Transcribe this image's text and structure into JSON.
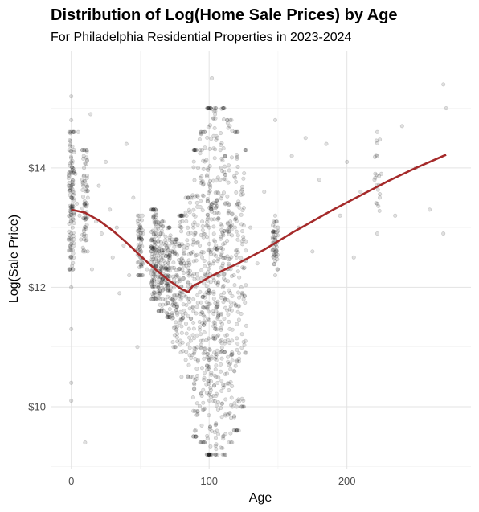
{
  "chart_data": {
    "type": "scatter",
    "title": "Distribution of Log(Home Sale Prices) by Age",
    "subtitle": "For Philadelphia Residential Properties in 2023-2024",
    "xlabel": "Age",
    "ylabel": "Log(Sale Price)",
    "xlim": [
      -15,
      290
    ],
    "ylim": [
      8.95,
      15.95
    ],
    "x_ticks": [
      0,
      100,
      200
    ],
    "x_tick_labels": [
      "0",
      "100",
      "200"
    ],
    "y_ticks": [
      10,
      12,
      14
    ],
    "y_tick_labels": [
      "$10",
      "$12",
      "$14"
    ],
    "grid": true,
    "legend": "none",
    "point_color": "#000000",
    "point_alpha": 0.12,
    "trend_color": "#a52a2a",
    "points": [
      [
        0,
        13.3
      ],
      [
        0,
        13.5
      ],
      [
        0,
        13.1
      ],
      [
        0,
        12.9
      ],
      [
        0,
        13.7
      ],
      [
        0,
        14.1
      ],
      [
        0,
        12.5
      ],
      [
        0,
        12.0
      ],
      [
        0,
        14.8
      ],
      [
        0,
        15.2
      ],
      [
        0,
        11.3
      ],
      [
        0,
        10.4
      ],
      [
        0,
        10.1
      ],
      [
        1,
        13.6
      ],
      [
        1,
        13.0
      ],
      [
        2,
        14.3
      ],
      [
        2,
        12.7
      ],
      [
        3,
        13.9
      ],
      [
        4,
        13.4
      ],
      [
        5,
        14.6
      ],
      [
        6,
        13.2
      ],
      [
        7,
        12.8
      ],
      [
        8,
        13.8
      ],
      [
        9,
        14.2
      ],
      [
        10,
        12.6
      ],
      [
        10,
        9.4
      ],
      [
        12,
        13.5
      ],
      [
        14,
        14.9
      ],
      [
        15,
        12.3
      ],
      [
        18,
        13.1
      ],
      [
        20,
        13.7
      ],
      [
        22,
        12.9
      ],
      [
        25,
        14.1
      ],
      [
        28,
        13.3
      ],
      [
        30,
        12.5
      ],
      [
        33,
        13.0
      ],
      [
        35,
        11.9
      ],
      [
        38,
        12.7
      ],
      [
        40,
        14.4
      ],
      [
        42,
        12.2
      ],
      [
        45,
        13.5
      ],
      [
        48,
        11.0
      ],
      [
        50,
        12.7
      ],
      [
        50,
        12.5
      ],
      [
        52,
        12.9
      ],
      [
        55,
        12.3
      ],
      [
        58,
        12.6
      ],
      [
        60,
        12.8
      ],
      [
        60,
        13.2
      ],
      [
        62,
        12.1
      ],
      [
        65,
        12.5
      ],
      [
        65,
        12.9
      ],
      [
        68,
        12.4
      ],
      [
        70,
        12.2
      ],
      [
        70,
        11.5
      ],
      [
        72,
        12.0
      ],
      [
        75,
        12.6
      ],
      [
        75,
        11.2
      ],
      [
        78,
        12.3
      ],
      [
        80,
        13.0
      ],
      [
        80,
        10.5
      ],
      [
        82,
        12.4
      ],
      [
        85,
        11.8
      ],
      [
        85,
        12.9
      ],
      [
        88,
        13.5
      ],
      [
        90,
        12.0
      ],
      [
        90,
        10.8
      ],
      [
        92,
        14.0
      ],
      [
        95,
        12.5
      ],
      [
        95,
        13.1
      ],
      [
        95,
        11.4
      ],
      [
        98,
        12.2
      ],
      [
        100,
        12.4
      ],
      [
        100,
        11.9
      ],
      [
        100,
        13.0
      ],
      [
        100,
        10.2
      ],
      [
        100,
        9.2
      ],
      [
        100,
        15.0
      ],
      [
        102,
        15.5
      ],
      [
        105,
        12.7
      ],
      [
        105,
        13.4
      ],
      [
        105,
        11.6
      ],
      [
        105,
        10.5
      ],
      [
        105,
        9.2
      ],
      [
        108,
        13.8
      ],
      [
        110,
        12.0
      ],
      [
        110,
        12.9
      ],
      [
        110,
        9.5
      ],
      [
        110,
        15.0
      ],
      [
        112,
        12.5
      ],
      [
        115,
        13.0
      ],
      [
        115,
        11.3
      ],
      [
        115,
        14.7
      ],
      [
        118,
        12.2
      ],
      [
        120,
        12.5
      ],
      [
        120,
        10.0
      ],
      [
        122,
        13.4
      ],
      [
        125,
        12.8
      ],
      [
        125,
        11.8
      ],
      [
        130,
        13.0
      ],
      [
        135,
        12.4
      ],
      [
        140,
        13.6
      ],
      [
        148,
        12.6
      ],
      [
        148,
        13.2
      ],
      [
        148,
        12.2
      ],
      [
        148,
        12.8
      ],
      [
        148,
        14.8
      ],
      [
        150,
        13.0
      ],
      [
        160,
        14.2
      ],
      [
        165,
        13.0
      ],
      [
        170,
        14.5
      ],
      [
        175,
        12.6
      ],
      [
        180,
        13.8
      ],
      [
        185,
        14.4
      ],
      [
        195,
        13.2
      ],
      [
        200,
        14.1
      ],
      [
        205,
        12.5
      ],
      [
        210,
        13.6
      ],
      [
        220,
        13.8
      ],
      [
        222,
        14.6
      ],
      [
        222,
        13.4
      ],
      [
        222,
        12.9
      ],
      [
        225,
        13.9
      ],
      [
        235,
        13.2
      ],
      [
        240,
        14.7
      ],
      [
        250,
        14.0
      ],
      [
        260,
        13.3
      ],
      [
        270,
        15.4
      ],
      [
        270,
        12.9
      ],
      [
        272,
        15.0
      ]
    ],
    "trend": [
      [
        0,
        13.3
      ],
      [
        10,
        13.25
      ],
      [
        20,
        13.12
      ],
      [
        30,
        12.95
      ],
      [
        40,
        12.75
      ],
      [
        50,
        12.53
      ],
      [
        60,
        12.32
      ],
      [
        70,
        12.13
      ],
      [
        80,
        11.97
      ],
      [
        85,
        11.92
      ],
      [
        88,
        12.02
      ],
      [
        95,
        12.1
      ],
      [
        100,
        12.17
      ],
      [
        110,
        12.28
      ],
      [
        120,
        12.39
      ],
      [
        130,
        12.51
      ],
      [
        140,
        12.63
      ],
      [
        150,
        12.77
      ],
      [
        160,
        12.91
      ],
      [
        170,
        13.04
      ],
      [
        180,
        13.17
      ],
      [
        190,
        13.3
      ],
      [
        200,
        13.42
      ],
      [
        210,
        13.54
      ],
      [
        220,
        13.66
      ],
      [
        230,
        13.78
      ],
      [
        240,
        13.89
      ],
      [
        250,
        14.0
      ],
      [
        260,
        14.1
      ],
      [
        272,
        14.22
      ]
    ],
    "dense_bands": [
      {
        "age": 0,
        "lo": 12.3,
        "hi": 14.6,
        "count": 120
      },
      {
        "age": 10,
        "lo": 12.6,
        "hi": 14.3,
        "count": 70
      },
      {
        "age": 50,
        "lo": 12.2,
        "hi": 13.2,
        "count": 60
      },
      {
        "age": 60,
        "lo": 11.8,
        "hi": 13.3,
        "count": 110
      },
      {
        "age": 65,
        "lo": 11.6,
        "hi": 13.1,
        "count": 90
      },
      {
        "age": 70,
        "lo": 11.5,
        "hi": 13.0,
        "count": 80
      },
      {
        "age": 75,
        "lo": 11.0,
        "hi": 12.8,
        "count": 70
      },
      {
        "age": 80,
        "lo": 10.8,
        "hi": 13.2,
        "count": 70
      },
      {
        "age": 85,
        "lo": 10.5,
        "hi": 13.5,
        "count": 60
      },
      {
        "age": 90,
        "lo": 9.5,
        "hi": 14.3,
        "count": 90
      },
      {
        "age": 95,
        "lo": 9.4,
        "hi": 14.6,
        "count": 100
      },
      {
        "age": 100,
        "lo": 9.2,
        "hi": 15.0,
        "count": 130
      },
      {
        "age": 105,
        "lo": 9.2,
        "hi": 15.0,
        "count": 130
      },
      {
        "age": 110,
        "lo": 9.2,
        "hi": 15.0,
        "count": 110
      },
      {
        "age": 115,
        "lo": 9.4,
        "hi": 14.8,
        "count": 90
      },
      {
        "age": 120,
        "lo": 9.6,
        "hi": 14.6,
        "count": 70
      },
      {
        "age": 125,
        "lo": 10.0,
        "hi": 14.3,
        "count": 50
      },
      {
        "age": 148,
        "lo": 12.3,
        "hi": 13.1,
        "count": 50
      },
      {
        "age": 222,
        "lo": 13.0,
        "hi": 14.8,
        "count": 18
      }
    ]
  }
}
